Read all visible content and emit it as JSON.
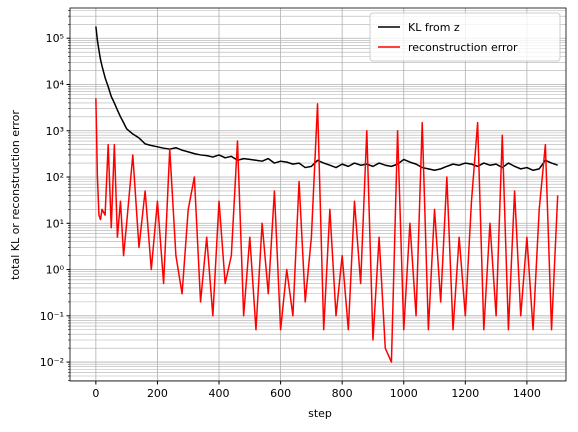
{
  "chart_data": {
    "type": "line",
    "xlabel": "step",
    "ylabel": "total KL or reconstruction error",
    "x": [
      0,
      5,
      10,
      15,
      20,
      30,
      40,
      50,
      60,
      70,
      80,
      90,
      100,
      120,
      140,
      160,
      180,
      200,
      220,
      240,
      260,
      280,
      300,
      320,
      340,
      360,
      380,
      400,
      420,
      440,
      460,
      480,
      500,
      520,
      540,
      560,
      580,
      600,
      620,
      640,
      660,
      680,
      700,
      720,
      740,
      760,
      780,
      800,
      820,
      840,
      860,
      880,
      900,
      920,
      940,
      960,
      980,
      1000,
      1020,
      1040,
      1060,
      1080,
      1100,
      1120,
      1140,
      1160,
      1180,
      1200,
      1220,
      1240,
      1260,
      1280,
      1300,
      1320,
      1340,
      1360,
      1380,
      1400,
      1420,
      1440,
      1460,
      1480,
      1500
    ],
    "series": [
      {
        "name": "KL from z",
        "color": "#000000",
        "values": [
          180000,
          90000,
          55000,
          35000,
          25000,
          14000,
          9000,
          5500,
          4000,
          2800,
          2000,
          1500,
          1100,
          850,
          700,
          520,
          480,
          450,
          420,
          400,
          430,
          380,
          350,
          320,
          300,
          290,
          270,
          300,
          260,
          280,
          230,
          250,
          240,
          230,
          220,
          250,
          200,
          220,
          210,
          190,
          200,
          160,
          170,
          230,
          200,
          180,
          160,
          190,
          170,
          200,
          180,
          190,
          170,
          200,
          180,
          170,
          190,
          240,
          210,
          190,
          160,
          150,
          140,
          150,
          170,
          190,
          180,
          200,
          190,
          170,
          200,
          180,
          190,
          160,
          200,
          170,
          150,
          160,
          140,
          150,
          230,
          200,
          180
        ]
      },
      {
        "name": "reconstruction error",
        "color": "#ff0000",
        "values": [
          5000,
          100,
          15,
          12,
          20,
          15,
          500,
          8,
          500,
          5,
          30,
          2,
          10,
          300,
          3,
          50,
          1,
          30,
          0.5,
          400,
          2,
          0.3,
          20,
          100,
          0.2,
          5,
          0.1,
          30,
          0.5,
          2,
          600,
          0.1,
          5,
          0.05,
          10,
          0.3,
          50,
          0.05,
          1,
          0.1,
          80,
          0.2,
          5,
          3800,
          0.05,
          20,
          0.1,
          2,
          0.05,
          30,
          0.5,
          1000,
          0.03,
          5,
          0.02,
          0.01,
          1000,
          0.05,
          10,
          0.1,
          1500,
          0.05,
          20,
          0.2,
          100,
          0.05,
          5,
          0.1,
          30,
          1500,
          0.05,
          10,
          0.1,
          800,
          0.05,
          50,
          0.1,
          5,
          0.05,
          20,
          500,
          0.05,
          40
        ]
      }
    ],
    "xlim": [
      -84,
      1527
    ],
    "xticks": [
      0,
      200,
      400,
      600,
      800,
      1000,
      1200,
      1400
    ],
    "ylim": [
      0.0039,
      450000
    ],
    "log_y": true,
    "yticks": [
      {
        "value": 0.01,
        "label": "10⁻²"
      },
      {
        "value": 0.1,
        "label": "10⁻¹"
      },
      {
        "value": 1,
        "label": "10⁰"
      },
      {
        "value": 10,
        "label": "10¹"
      },
      {
        "value": 100,
        "label": "10²"
      },
      {
        "value": 1000,
        "label": "10³"
      },
      {
        "value": 10000,
        "label": "10⁴"
      },
      {
        "value": 100000,
        "label": "10⁵"
      }
    ],
    "grid": true,
    "minor_grid": true,
    "legend": "upper right"
  }
}
